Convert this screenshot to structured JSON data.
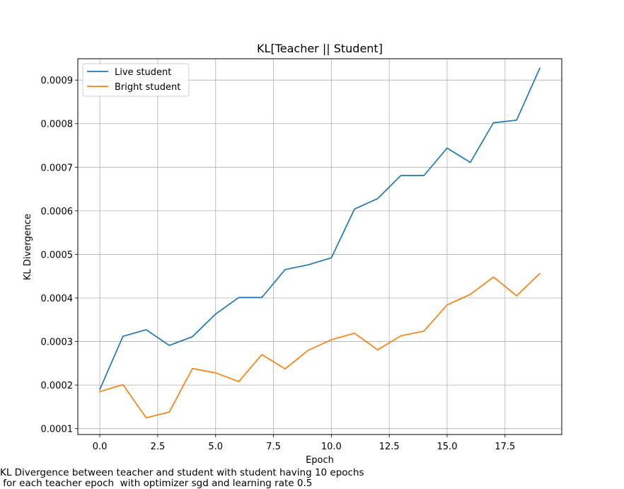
{
  "chart_data": {
    "type": "line",
    "title": "KL[Teacher || Student]",
    "xlabel": "Epoch",
    "ylabel": "KL Divergence",
    "x": [
      0,
      1,
      2,
      3,
      4,
      5,
      6,
      7,
      8,
      9,
      10,
      11,
      12,
      13,
      14,
      15,
      16,
      17,
      18,
      19
    ],
    "xlim": [
      -0.95,
      19.95
    ],
    "ylim": [
      8.65e-05,
      0.000949
    ],
    "xticks": [
      0.0,
      2.5,
      5.0,
      7.5,
      10.0,
      12.5,
      15.0,
      17.5
    ],
    "xtick_labels": [
      "0.0",
      "2.5",
      "5.0",
      "7.5",
      "10.0",
      "12.5",
      "15.0",
      "17.5"
    ],
    "yticks": [
      0.0001,
      0.0002,
      0.0003,
      0.0004,
      0.0005,
      0.0006,
      0.0007,
      0.0008,
      0.0009
    ],
    "ytick_labels": [
      "0.0001",
      "0.0002",
      "0.0003",
      "0.0004",
      "0.0005",
      "0.0006",
      "0.0007",
      "0.0008",
      "0.0009"
    ],
    "grid": true,
    "legend_position": "upper-left",
    "series": [
      {
        "name": "Live student",
        "color": "#1f77b4",
        "values": [
          0.00019,
          0.000312,
          0.000327,
          0.000291,
          0.000311,
          0.000363,
          0.000401,
          0.000401,
          0.000465,
          0.000476,
          0.000492,
          0.000604,
          0.000628,
          0.000681,
          0.000681,
          0.000744,
          0.000711,
          0.000802,
          0.000808,
          0.000927
        ]
      },
      {
        "name": "Bright student",
        "color": "#ff7f0e",
        "values": [
          0.000185,
          0.000201,
          0.000125,
          0.000138,
          0.000238,
          0.000228,
          0.000208,
          0.00027,
          0.000237,
          0.00028,
          0.000304,
          0.000319,
          0.000281,
          0.000313,
          0.000324,
          0.000384,
          0.000408,
          0.000448,
          0.000405,
          0.000456
        ]
      }
    ]
  },
  "caption": {
    "line1": "KL Divergence between teacher and student with student having 10 epochs",
    "line2": " for each teacher epoch  with optimizer sgd and learning rate 0.5"
  }
}
